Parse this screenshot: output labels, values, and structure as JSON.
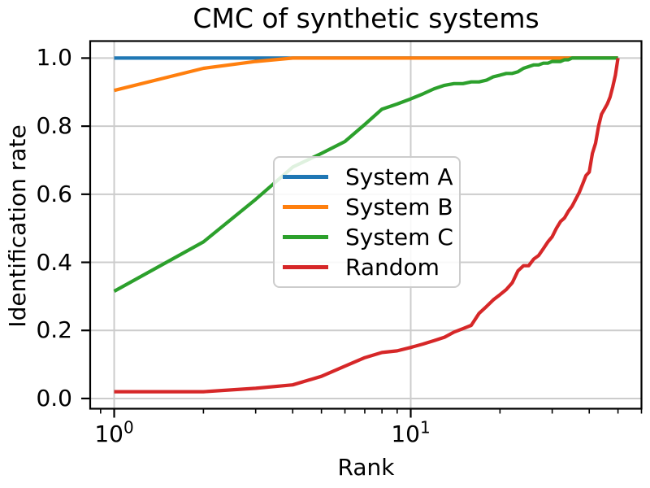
{
  "chart_data": {
    "type": "line",
    "title": "CMC of synthetic systems",
    "xlabel": "Rank",
    "ylabel": "Identification rate",
    "xscale": "log",
    "xlim": [
      0.83,
      60
    ],
    "ylim": [
      -0.03,
      1.05
    ],
    "grid": true,
    "legend_position": "center",
    "x": [
      1,
      2,
      3,
      4,
      5,
      6,
      7,
      8,
      9,
      10,
      11,
      12,
      13,
      14,
      15,
      16,
      17,
      18,
      19,
      20,
      21,
      22,
      23,
      24,
      25,
      26,
      27,
      28,
      29,
      30,
      31,
      32,
      33,
      34,
      35,
      36,
      37,
      38,
      39,
      40,
      41,
      42,
      43,
      44,
      45,
      46,
      47,
      48,
      49,
      50
    ],
    "series": [
      {
        "name": "System A",
        "color": "#1f77b4",
        "values": [
          1.0,
          1.0,
          1.0,
          1.0,
          1.0,
          1.0,
          1.0,
          1.0,
          1.0,
          1.0,
          1.0,
          1.0,
          1.0,
          1.0,
          1.0,
          1.0,
          1.0,
          1.0,
          1.0,
          1.0,
          1.0,
          1.0,
          1.0,
          1.0,
          1.0,
          1.0,
          1.0,
          1.0,
          1.0,
          1.0,
          1.0,
          1.0,
          1.0,
          1.0,
          1.0,
          1.0,
          1.0,
          1.0,
          1.0,
          1.0,
          1.0,
          1.0,
          1.0,
          1.0,
          1.0,
          1.0,
          1.0,
          1.0,
          1.0,
          1.0
        ]
      },
      {
        "name": "System B",
        "color": "#ff7f0e",
        "values": [
          0.905,
          0.97,
          0.99,
          1.0,
          1.0,
          1.0,
          1.0,
          1.0,
          1.0,
          1.0,
          1.0,
          1.0,
          1.0,
          1.0,
          1.0,
          1.0,
          1.0,
          1.0,
          1.0,
          1.0,
          1.0,
          1.0,
          1.0,
          1.0,
          1.0,
          1.0,
          1.0,
          1.0,
          1.0,
          1.0,
          1.0,
          1.0,
          1.0,
          1.0,
          1.0,
          1.0,
          1.0,
          1.0,
          1.0,
          1.0,
          1.0,
          1.0,
          1.0,
          1.0,
          1.0,
          1.0,
          1.0,
          1.0,
          1.0,
          1.0
        ]
      },
      {
        "name": "System C",
        "color": "#2ca02c",
        "values": [
          0.315,
          0.46,
          0.585,
          0.68,
          0.72,
          0.755,
          0.805,
          0.85,
          0.865,
          0.88,
          0.895,
          0.91,
          0.92,
          0.925,
          0.925,
          0.93,
          0.93,
          0.935,
          0.945,
          0.95,
          0.955,
          0.955,
          0.96,
          0.97,
          0.975,
          0.98,
          0.98,
          0.985,
          0.985,
          0.99,
          0.99,
          0.99,
          0.995,
          0.995,
          1.0,
          1.0,
          1.0,
          1.0,
          1.0,
          1.0,
          1.0,
          1.0,
          1.0,
          1.0,
          1.0,
          1.0,
          1.0,
          1.0,
          1.0,
          1.0
        ]
      },
      {
        "name": "Random",
        "color": "#d62728",
        "values": [
          0.02,
          0.02,
          0.03,
          0.04,
          0.065,
          0.095,
          0.12,
          0.135,
          0.14,
          0.15,
          0.16,
          0.17,
          0.18,
          0.195,
          0.205,
          0.215,
          0.25,
          0.27,
          0.29,
          0.305,
          0.32,
          0.34,
          0.375,
          0.39,
          0.39,
          0.41,
          0.42,
          0.44,
          0.46,
          0.475,
          0.5,
          0.52,
          0.53,
          0.55,
          0.565,
          0.585,
          0.605,
          0.63,
          0.655,
          0.665,
          0.72,
          0.75,
          0.8,
          0.835,
          0.85,
          0.865,
          0.885,
          0.915,
          0.95,
          1.0
        ]
      }
    ],
    "yticks": {
      "values": [
        0.0,
        0.2,
        0.4,
        0.6,
        0.8,
        1.0
      ],
      "labels": [
        "0.0",
        "0.2",
        "0.4",
        "0.6",
        "0.8",
        "1.0"
      ]
    },
    "xticks_major": [
      {
        "value": 1,
        "base": "10",
        "exp": "0"
      },
      {
        "value": 10,
        "base": "10",
        "exp": "1"
      }
    ],
    "xticks_minor": [
      0.9,
      2,
      3,
      4,
      5,
      6,
      7,
      8,
      9,
      20,
      30,
      40,
      50,
      60
    ]
  },
  "styles": {
    "background": "#ffffff",
    "grid_color": "#cccccc",
    "spine_color": "#000000",
    "text_color": "#000000",
    "legend_edge_color": "#cccccc"
  }
}
